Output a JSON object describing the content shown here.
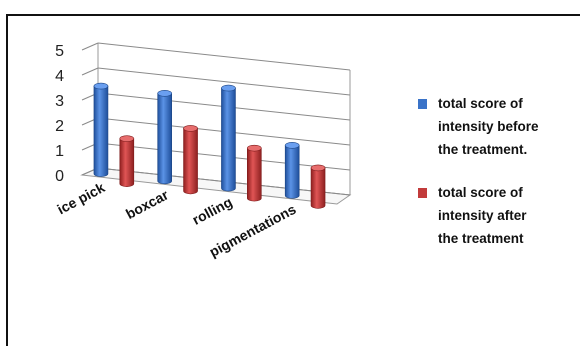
{
  "chart_data": {
    "type": "bar",
    "style": "3d-cylinder",
    "categories": [
      "ice pick",
      "boxcar",
      "rolling",
      "pigmentations"
    ],
    "series": [
      {
        "name": "total score of intensity before the treatment.",
        "legend_lines": [
          "total score of",
          "intensity before",
          "the treatment."
        ],
        "color": "#3a73c8",
        "values": [
          3.5,
          3.5,
          4.0,
          2.0
        ]
      },
      {
        "name": "total score of intensity after the treatment",
        "legend_lines": [
          "total score of",
          "intensity after",
          "the treatment"
        ],
        "color": "#c23b3b",
        "values": [
          1.8,
          2.5,
          2.0,
          1.5
        ]
      }
    ],
    "yticks": [
      "0",
      "1",
      "2",
      "3",
      "4",
      "5"
    ],
    "ylim": [
      0,
      5
    ],
    "grid": true,
    "legend_position": "right",
    "title": "",
    "xlabel": "",
    "ylabel": ""
  }
}
